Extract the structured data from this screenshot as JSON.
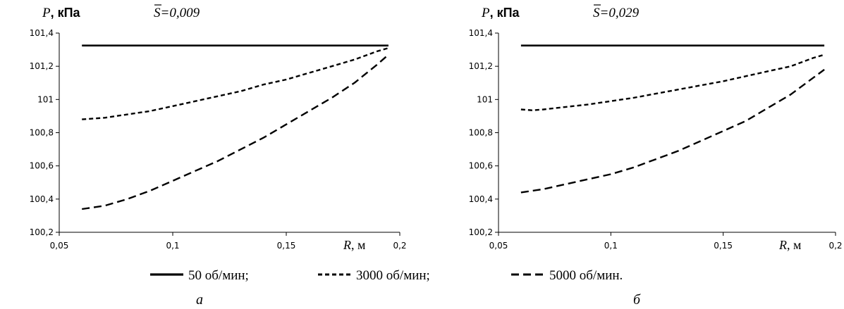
{
  "chart_data": [
    {
      "type": "line",
      "panel_label": "а",
      "ylabel": "P",
      "yunit": ", кПа",
      "xlabel": "R",
      "xunit": ", м",
      "parameter": {
        "symbol": "S",
        "text": "=0,009"
      },
      "xlim": [
        0.05,
        0.2
      ],
      "ylim": [
        100.2,
        101.4
      ],
      "xticks": [
        "0,05",
        "0,1",
        "0,15",
        "0,2"
      ],
      "yticks": [
        "100,2",
        "100,4",
        "100,6",
        "100,8",
        "101",
        "101,2",
        "101,4"
      ],
      "series": [
        {
          "name": "50 об/мин;",
          "style": "solid",
          "x": [
            0.06,
            0.195
          ],
          "y": [
            101.325,
            101.325
          ]
        },
        {
          "name": "3000 об/мин;",
          "style": "dash-short",
          "x": [
            0.06,
            0.07,
            0.08,
            0.09,
            0.1,
            0.11,
            0.12,
            0.13,
            0.14,
            0.15,
            0.16,
            0.17,
            0.18,
            0.19,
            0.195
          ],
          "y": [
            100.88,
            100.89,
            100.91,
            100.93,
            100.96,
            100.99,
            101.02,
            101.05,
            101.09,
            101.12,
            101.16,
            101.2,
            101.24,
            101.29,
            101.31
          ]
        },
        {
          "name": "5000 об/мин.",
          "style": "dash-long",
          "x": [
            0.06,
            0.07,
            0.08,
            0.09,
            0.1,
            0.11,
            0.12,
            0.13,
            0.14,
            0.15,
            0.16,
            0.17,
            0.18,
            0.19,
            0.195
          ],
          "y": [
            100.34,
            100.36,
            100.4,
            100.45,
            100.51,
            100.57,
            100.63,
            100.7,
            100.77,
            100.85,
            100.93,
            101.01,
            101.1,
            101.21,
            101.27
          ]
        }
      ]
    },
    {
      "type": "line",
      "panel_label": "б",
      "ylabel": "P",
      "yunit": ", кПа",
      "xlabel": "R",
      "xunit": ", м",
      "parameter": {
        "symbol": "S",
        "text": "=0,029"
      },
      "xlim": [
        0.05,
        0.2
      ],
      "ylim": [
        100.2,
        101.4
      ],
      "xticks": [
        "0,05",
        "0,1",
        "0,15",
        "0,2"
      ],
      "yticks": [
        "100,2",
        "100,4",
        "100,6",
        "100,8",
        "101",
        "101,2",
        "101,4"
      ],
      "series": [
        {
          "name": "50 об/мин;",
          "style": "solid",
          "x": [
            0.06,
            0.195
          ],
          "y": [
            101.325,
            101.325
          ]
        },
        {
          "name": "3000 об/мин;",
          "style": "dash-short",
          "x": [
            0.06,
            0.065,
            0.07,
            0.08,
            0.09,
            0.1,
            0.11,
            0.12,
            0.13,
            0.14,
            0.15,
            0.16,
            0.17,
            0.18,
            0.19,
            0.195
          ],
          "y": [
            100.94,
            100.935,
            100.94,
            100.955,
            100.97,
            100.99,
            101.01,
            101.035,
            101.06,
            101.085,
            101.11,
            101.14,
            101.17,
            101.2,
            101.25,
            101.27
          ]
        },
        {
          "name": "5000 об/мин.",
          "style": "dash-long",
          "x": [
            0.06,
            0.07,
            0.08,
            0.09,
            0.1,
            0.11,
            0.12,
            0.13,
            0.14,
            0.15,
            0.16,
            0.17,
            0.18,
            0.19,
            0.195
          ],
          "y": [
            100.44,
            100.46,
            100.49,
            100.52,
            100.55,
            100.59,
            100.64,
            100.69,
            100.75,
            100.81,
            100.87,
            100.95,
            101.03,
            101.13,
            101.18
          ]
        }
      ]
    }
  ],
  "legend": [
    {
      "label": "50 об/мин;",
      "style": "solid"
    },
    {
      "label": "3000 об/мин;",
      "style": "dash-short"
    },
    {
      "label": "5000 об/мин.",
      "style": "dash-long"
    }
  ]
}
